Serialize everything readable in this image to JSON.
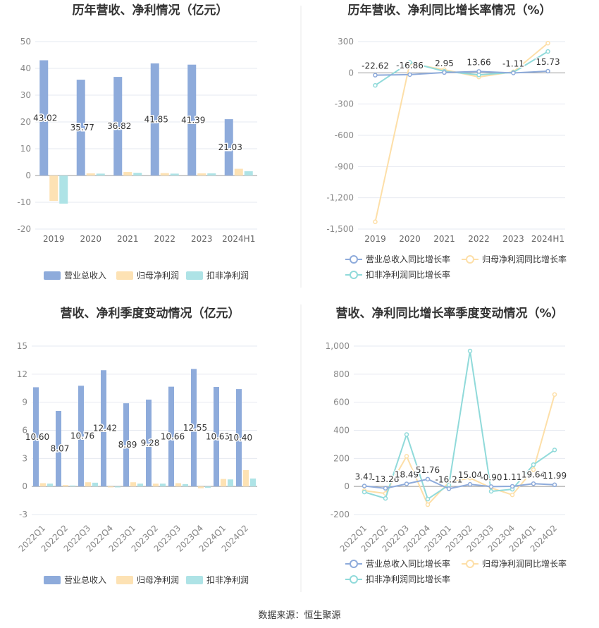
{
  "footer": "数据来源：恒生聚源",
  "colors": {
    "revenue": "#8eabdb",
    "parent_net": "#fde2b4",
    "deducted_net": "#aee3e6",
    "revenue_line": "#8eabdb",
    "parent_line": "#fddfa8",
    "deducted_line": "#90dada",
    "grid": "#e6e9f0",
    "divider": "#e9e9e9"
  },
  "chart_data": [
    {
      "type": "bar",
      "title": "历年营收、净利情况（亿元）",
      "categories": [
        "2019",
        "2020",
        "2021",
        "2022",
        "2023",
        "2024H1"
      ],
      "yticks": [
        "50",
        "40",
        "30",
        "20",
        "10",
        "0",
        "-10",
        "-20"
      ],
      "ylim": [
        -20,
        50
      ],
      "series": [
        {
          "name": "营业总收入",
          "values": [
            43.02,
            35.77,
            36.82,
            41.85,
            41.39,
            21.03
          ],
          "labels": [
            "43.02",
            "35.77",
            "36.82",
            "41.85",
            "41.39",
            "21.03"
          ]
        },
        {
          "name": "归母净利润",
          "values": [
            -9.5,
            0.8,
            1.3,
            0.9,
            0.8,
            2.5
          ]
        },
        {
          "name": "扣非净利润",
          "values": [
            -10.5,
            0.7,
            1.0,
            0.7,
            0.8,
            1.6
          ]
        }
      ],
      "legend": "bottom"
    },
    {
      "type": "line",
      "title": "历年营收、净利同比增长率情况（%）",
      "categories": [
        "2019",
        "2020",
        "2021",
        "2022",
        "2023",
        "2024H1"
      ],
      "yticks": [
        "300",
        "0",
        "-300",
        "-600",
        "-900",
        "-1,200",
        "-1,500"
      ],
      "ylim": [
        -1500,
        300
      ],
      "series": [
        {
          "name": "营业总收入同比增长率",
          "values": [
            -22.62,
            -16.86,
            2.95,
            13.66,
            -1.11,
            15.73
          ],
          "labels": [
            "-22.62",
            "-16.86",
            "2.95",
            "13.66",
            "-1.11",
            "15.73"
          ]
        },
        {
          "name": "归母净利润同比增长率",
          "values": [
            -1430,
            90,
            30,
            -40,
            10,
            285
          ]
        },
        {
          "name": "扣非净利润同比增长率",
          "values": [
            -120,
            100,
            15,
            -20,
            5,
            205
          ]
        }
      ],
      "legend": "bottom"
    },
    {
      "type": "bar",
      "title": "营收、净利季度变动情况（亿元）",
      "categories": [
        "2022Q1",
        "2022Q2",
        "2022Q3",
        "2022Q4",
        "2023Q1",
        "2023Q2",
        "2023Q3",
        "2023Q4",
        "2024Q1",
        "2024Q2"
      ],
      "yticks": [
        "15",
        "12",
        "9",
        "6",
        "3",
        "0",
        "-3"
      ],
      "ylim": [
        -3,
        15
      ],
      "series": [
        {
          "name": "营业总收入",
          "values": [
            10.6,
            8.07,
            10.76,
            12.42,
            8.89,
            9.28,
            10.66,
            12.55,
            10.63,
            10.4
          ],
          "labels": [
            "10.60",
            "8.07",
            "10.76",
            "12.42",
            "8.89",
            "9.28",
            "10.66",
            "12.55",
            "10.63",
            "10.40"
          ]
        },
        {
          "name": "归母净利润",
          "values": [
            0.35,
            0.15,
            0.45,
            -0.1,
            0.45,
            0.3,
            0.35,
            -0.2,
            0.8,
            1.75
          ]
        },
        {
          "name": "扣非净利润",
          "values": [
            0.3,
            0.1,
            0.4,
            -0.1,
            0.3,
            0.3,
            0.25,
            -0.15,
            0.75,
            0.85
          ]
        }
      ],
      "legend": "bottom"
    },
    {
      "type": "line",
      "title": "营收、净利同比增长率季度变动情况（%）",
      "categories": [
        "2022Q1",
        "2022Q2",
        "2022Q3",
        "2022Q4",
        "2023Q1",
        "2023Q2",
        "2023Q3",
        "2023Q4",
        "2024Q1",
        "2024Q2"
      ],
      "yticks": [
        "1,000",
        "800",
        "600",
        "400",
        "200",
        "0",
        "-200"
      ],
      "ylim": [
        -200,
        1000
      ],
      "series": [
        {
          "name": "营业总收入同比增长率",
          "values": [
            3.41,
            -13.26,
            18.49,
            51.76,
            -16.21,
            15.04,
            -0.9,
            1.11,
            19.64,
            11.99
          ],
          "labels": [
            "3.41",
            "-13.26",
            "18.49",
            "51.76",
            "-16.21",
            "15.04",
            "-0.90",
            "1.11",
            "19.64",
            "11.99"
          ]
        },
        {
          "name": "归母净利润同比增长率",
          "values": [
            -30,
            -50,
            215,
            -130,
            30,
            60,
            -10,
            -60,
            120,
            655
          ]
        },
        {
          "name": "扣非净利润同比增长率",
          "values": [
            -40,
            -85,
            370,
            -90,
            10,
            965,
            -35,
            -20,
            155,
            260
          ]
        }
      ],
      "legend": "bottom"
    }
  ]
}
